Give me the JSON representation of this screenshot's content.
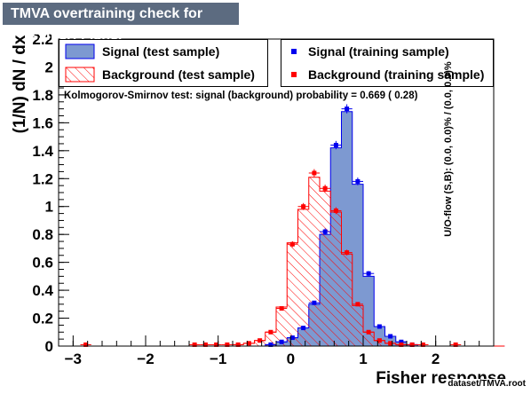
{
  "title": "TMVA overtraining check for classifier: Fisher",
  "footer_file": "dataset/TMVA.root",
  "overflow_text": "U/O-flow (S,B): (0.0, 0.0)% / (0.0, 0.0)%",
  "colors": {
    "signal_fill": "#7d99d1",
    "signal_line": "#0000ee",
    "background_line": "#ff0000",
    "title_bg": "#5c6b80"
  },
  "chart_data": {
    "type": "bar",
    "title": "TMVA overtraining check for classifier: Fisher",
    "xlabel": "Fisher response",
    "ylabel": "(1/N) dN / dx",
    "xlim": [
      -3.2,
      2.8
    ],
    "ylim": [
      0,
      2.2
    ],
    "x_ticks": [
      -3,
      -2,
      -1,
      0,
      1,
      2
    ],
    "y_ticks": [
      0,
      0.2,
      0.4,
      0.6,
      0.8,
      1,
      1.2,
      1.4,
      1.6,
      1.8,
      2,
      2.2
    ],
    "bin_edges_start": -3.2,
    "bin_width": 0.15,
    "legend_position": "top",
    "annotation": "Kolmogorov-Smirnov test: signal (background) probability = 0.669 ( 0.28)",
    "series": [
      {
        "name": "Signal (test sample)",
        "style": "filled-histogram",
        "values": [
          0,
          0,
          0,
          0,
          0,
          0,
          0,
          0,
          0,
          0,
          0,
          0,
          0,
          0,
          0,
          0,
          0,
          0,
          0,
          0.01,
          0.03,
          0.06,
          0.13,
          0.3,
          0.8,
          1.42,
          1.68,
          1.16,
          0.5,
          0.14,
          0.07,
          0.03,
          0.01,
          0,
          0,
          0,
          0,
          0,
          0,
          0,
          0
        ]
      },
      {
        "name": "Background (test sample)",
        "style": "hatched-histogram",
        "values": [
          0,
          0,
          0,
          0,
          0,
          0,
          0,
          0,
          0,
          0,
          0,
          0,
          0,
          0,
          0,
          0,
          0.01,
          0.02,
          0.04,
          0.1,
          0.28,
          0.74,
          0.98,
          1.21,
          1.11,
          0.96,
          0.66,
          0.29,
          0.1,
          0.04,
          0.02,
          0.01,
          0,
          0,
          0,
          0,
          0,
          0,
          0,
          0,
          0
        ]
      },
      {
        "name": "Signal (training sample)",
        "style": "points",
        "values": [
          0,
          0,
          0,
          0,
          0,
          0,
          0,
          0,
          0,
          0,
          0,
          0,
          0,
          0,
          0,
          0,
          0,
          0,
          0,
          0.01,
          0.03,
          0.06,
          0.13,
          0.31,
          0.82,
          1.44,
          1.7,
          1.18,
          0.52,
          0.14,
          0.07,
          0.03,
          0.01,
          0,
          0,
          0,
          0,
          0,
          0,
          0,
          0
        ]
      },
      {
        "name": "Background (training sample)",
        "style": "points",
        "values": [
          0,
          0,
          0.01,
          0,
          0,
          0,
          0,
          0,
          0,
          0,
          0,
          0,
          0.01,
          0.01,
          0.01,
          0.01,
          0.01,
          0.02,
          0.04,
          0.1,
          0.27,
          0.73,
          1.0,
          1.24,
          1.13,
          0.97,
          0.67,
          0.3,
          0.1,
          0.04,
          0.02,
          0.01,
          0.01,
          0.01,
          0,
          0,
          0.01,
          0,
          0,
          0,
          0
        ]
      }
    ]
  }
}
